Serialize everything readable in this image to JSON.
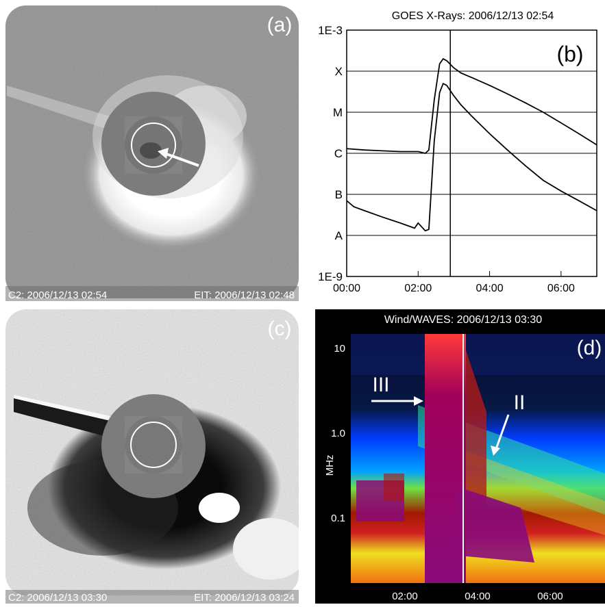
{
  "panel_a": {
    "label": "(a)",
    "caption_left": "C2: 2006/12/13 02:54",
    "caption_right": "EIT: 2006/12/13 02:48"
  },
  "panel_b": {
    "label": "(b)",
    "title": "GOES X-Rays: 2006/12/13 02:54",
    "y_ticks": [
      "1E-3",
      "X",
      "M",
      "C",
      "B",
      "A",
      "1E-9"
    ],
    "x_ticks": [
      "00:00",
      "02:00",
      "04:00",
      "06:00"
    ]
  },
  "panel_c": {
    "label": "(c)",
    "caption_left": "C2: 2006/12/13 03:30",
    "caption_right": "EIT: 2006/12/13 03:24"
  },
  "panel_d": {
    "label": "(d)",
    "title": "Wind/WAVES: 2006/12/13 03:30",
    "ylabel": "MHz",
    "y_ticks": [
      "10",
      "1.0",
      "0.1"
    ],
    "x_ticks": [
      "02:00",
      "04:00",
      "06:00"
    ],
    "annotation_III": "III",
    "annotation_II": "II"
  },
  "chart_data": [
    {
      "type": "line",
      "panel": "b",
      "title": "GOES X-Rays: 2006/12/13 02:54",
      "x_unit": "hours",
      "xlim": [
        0,
        7
      ],
      "y_scale": "log",
      "ylim": [
        1e-09,
        0.001
      ],
      "x_ticks": [
        "00:00",
        "02:00",
        "04:00",
        "06:00"
      ],
      "y_ticks": [
        "1E-3",
        "X",
        "M",
        "C",
        "B",
        "A",
        "1E-9"
      ],
      "grid": "horizontal",
      "vertical_marker_x": 2.9,
      "series": [
        {
          "x": [
            0,
            0.5,
            1.0,
            1.5,
            1.9,
            2.0,
            2.2,
            2.3,
            2.45,
            2.6,
            2.7,
            2.8,
            3.0,
            3.2,
            3.5,
            4.0,
            4.5,
            5.0,
            5.5,
            6.0,
            6.5,
            7.0
          ],
          "y": [
            1.3e-06,
            1.2e-06,
            1.15e-06,
            1.1e-06,
            1.1e-06,
            1.1e-06,
            1e-06,
            1.2e-06,
            2e-05,
            0.00015,
            0.0002,
            0.00018,
            0.00012,
            9e-05,
            7e-05,
            4.5e-05,
            2.8e-05,
            1.7e-05,
            1e-05,
            5.5e-06,
            3e-06,
            1.6e-06
          ]
        },
        {
          "x": [
            0,
            0.2,
            0.5,
            1.0,
            1.5,
            1.9,
            2.0,
            2.2,
            2.3,
            2.45,
            2.6,
            2.7,
            2.8,
            3.0,
            3.2,
            3.5,
            4.0,
            4.5,
            5.0,
            5.5,
            6.0,
            6.5,
            7.0
          ],
          "y": [
            7e-08,
            5e-08,
            4e-08,
            2.8e-08,
            2e-08,
            1.5e-08,
            2e-08,
            1.3e-08,
            1.4e-08,
            2e-06,
            3e-05,
            5e-05,
            4.5e-05,
            2.5e-05,
            1.5e-05,
            8e-06,
            3e-06,
            1.2e-06,
            5e-07,
            2.2e-07,
            1.2e-07,
            7e-08,
            4e-08
          ]
        }
      ]
    },
    {
      "type": "heatmap",
      "panel": "d",
      "title": "Wind/WAVES: 2006/12/13 03:30",
      "ylabel": "MHz",
      "y_scale": "log",
      "x_ticks": [
        "02:00",
        "04:00",
        "06:00"
      ],
      "y_ticks": [
        "10",
        "1.0",
        "0.1"
      ],
      "vertical_marker_time": "03:30"
    }
  ]
}
